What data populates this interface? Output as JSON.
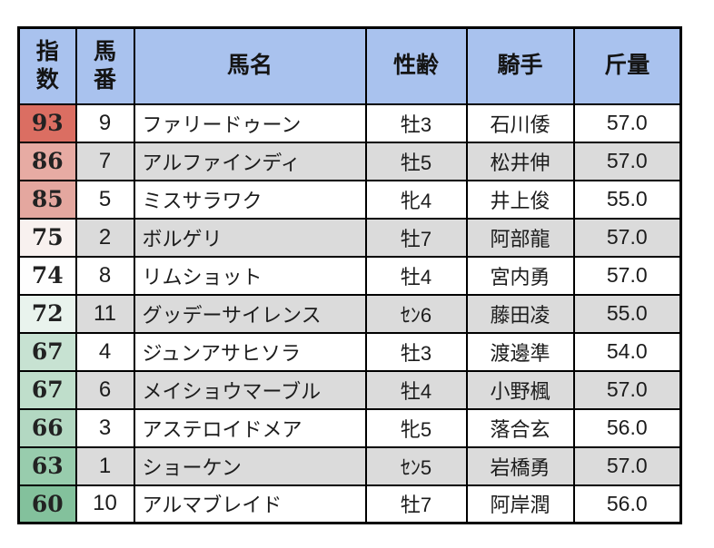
{
  "colors": {
    "header_bg": "#a9c2ee",
    "row_bg": "#ffffff",
    "row_bg_alt": "#dbdbdb",
    "border": "#000000",
    "index_gradient_top": "#db6e62",
    "index_gradient_bottom": "#83c19c"
  },
  "chart_data": {
    "type": "table",
    "title": "",
    "columns": [
      "指数",
      "馬番",
      "馬名",
      "性齢",
      "騎手",
      "斤量"
    ],
    "rows": [
      {
        "index": "93",
        "number": "9",
        "name": "ファリードゥーン",
        "sex_age": "牡3",
        "jockey": "石川倭",
        "weight": "57.0",
        "index_bg": "#db6e62"
      },
      {
        "index": "86",
        "number": "7",
        "name": "アルファインディ",
        "sex_age": "牡5",
        "jockey": "松井伸",
        "weight": "57.0",
        "index_bg": "#e7aba3"
      },
      {
        "index": "85",
        "number": "5",
        "name": "ミスサラワク",
        "sex_age": "牝4",
        "jockey": "井上俊",
        "weight": "55.0",
        "index_bg": "#e4a79f"
      },
      {
        "index": "75",
        "number": "2",
        "name": "ボルゲリ",
        "sex_age": "牡7",
        "jockey": "阿部龍",
        "weight": "57.0",
        "index_bg": "#f8f1ef"
      },
      {
        "index": "74",
        "number": "8",
        "name": "リムショット",
        "sex_age": "牡4",
        "jockey": "宮内勇",
        "weight": "57.0",
        "index_bg": "#fefefe"
      },
      {
        "index": "72",
        "number": "11",
        "name": "グッデーサイレンス",
        "sex_age": "ｾﾝ6",
        "jockey": "藤田凌",
        "weight": "55.0",
        "index_bg": "#e9f3ed"
      },
      {
        "index": "67",
        "number": "4",
        "name": "ジュンアサヒソラ",
        "sex_age": "牡3",
        "jockey": "渡邊準",
        "weight": "54.0",
        "index_bg": "#c7e2d2"
      },
      {
        "index": "67",
        "number": "6",
        "name": "メイショウマーブル",
        "sex_age": "牡4",
        "jockey": "小野楓",
        "weight": "57.0",
        "index_bg": "#bfdecb"
      },
      {
        "index": "66",
        "number": "3",
        "name": "アステロイドメア",
        "sex_age": "牝5",
        "jockey": "落合玄",
        "weight": "56.0",
        "index_bg": "#b3d8c2"
      },
      {
        "index": "63",
        "number": "1",
        "name": "ショーケン",
        "sex_age": "ｾﾝ5",
        "jockey": "岩橋勇",
        "weight": "57.0",
        "index_bg": "#98ccad"
      },
      {
        "index": "60",
        "number": "10",
        "name": "アルマブレイド",
        "sex_age": "牡7",
        "jockey": "阿岸潤",
        "weight": "56.0",
        "index_bg": "#83c19c"
      }
    ]
  }
}
